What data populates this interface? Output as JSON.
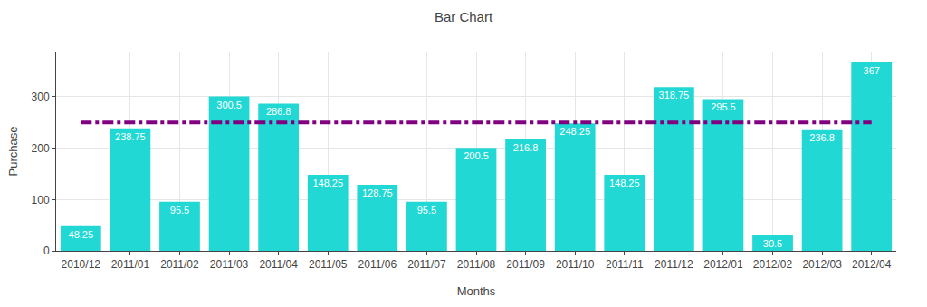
{
  "chart_data": {
    "type": "bar",
    "title": "Bar Chart",
    "x_label": "Months",
    "y_label": "Purchase",
    "categories": [
      "2010/12",
      "2011/01",
      "2011/02",
      "2011/03",
      "2011/04",
      "2011/05",
      "2011/06",
      "2011/07",
      "2011/08",
      "2011/09",
      "2011/10",
      "2011/11",
      "2011/12",
      "2012/01",
      "2012/02",
      "2012/03",
      "2012/04"
    ],
    "series": [
      {
        "type": "bar",
        "color": "#22d8d4",
        "values": [
          48.25,
          238.75,
          95.5,
          300.5,
          286.8,
          148.25,
          128.75,
          95.5,
          200.5,
          216.8,
          248.25,
          148.25,
          318.75,
          295.5,
          30.5,
          236.8,
          367
        ]
      },
      {
        "type": "line",
        "color": "#800080",
        "line_style": "dashdot",
        "values": [
          250,
          250,
          250,
          250,
          250,
          250,
          250,
          250,
          250,
          250,
          250,
          250,
          250,
          250,
          250,
          250,
          250
        ]
      }
    ],
    "ylim": [
      0,
      388
    ],
    "yticks": [
      0,
      100,
      200,
      300
    ],
    "grid": true,
    "data_labels": true
  }
}
